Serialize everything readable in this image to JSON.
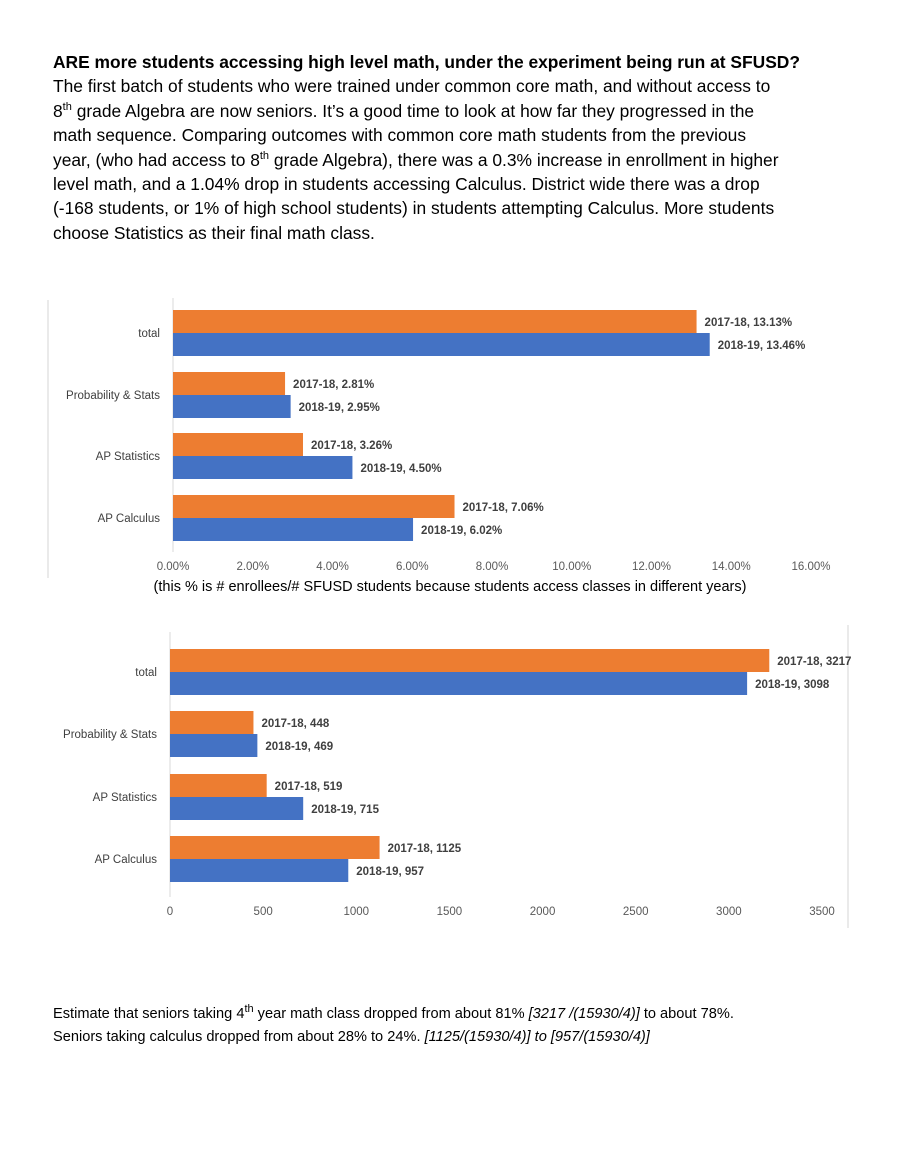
{
  "intro": {
    "heading": "ARE more students accessing high level math, under the experiment being run at SFUSD?",
    "p1": "The first batch of students who were trained under common core math, and without access to",
    "p2_sup_num": "8",
    "p2_sup": "th",
    "p2_rest": " grade Algebra are now seniors. It’s a good time to look at how far they progressed in the",
    "p3": "math sequence. Comparing outcomes with common core math students from the previous",
    "p4_pre": "year, (who had access to 8",
    "p4_sup": "th",
    "p4_rest": " grade Algebra), there was a 0.3% increase in enrollment in higher",
    "p5": "level math, and a 1.04% drop in students accessing Calculus.       District wide there was a drop",
    "p6": "(-168 students, or 1% of high school students) in students attempting Calculus. More students",
    "p7": "choose Statistics as their final math class."
  },
  "caption": "(this % is # enrollees/# SFUSD students because students access classes in different years)",
  "footer": {
    "l1_pre": "Estimate that seniors taking 4",
    "l1_sup": "th",
    "l1_mid": " year math class dropped from about 81% ",
    "l1_ital": "[3217 /(15930/4)]",
    "l1_post": " to about 78%.",
    "l2_pre": "Seniors taking calculus dropped from about 28% to 24%. ",
    "l2_ital": "[1125/(15930/4)] to [957/(15930/4)]"
  },
  "colors": {
    "s2017": "#ED7D31",
    "s2018": "#4472C4"
  },
  "chart_data": [
    {
      "type": "bar",
      "orientation": "horizontal",
      "categories": [
        "total",
        "Probability & Stats",
        "AP Statistics",
        "AP Calculus"
      ],
      "series": [
        {
          "name": "2017-18",
          "values": [
            13.13,
            2.81,
            3.26,
            7.06
          ],
          "labels": [
            "2017-18, 13.13%",
            "2017-18, 2.81%",
            "2017-18, 3.26%",
            "2017-18, 7.06%"
          ]
        },
        {
          "name": "2018-19",
          "values": [
            13.46,
            2.95,
            4.5,
            6.02
          ],
          "labels": [
            "2018-19, 13.46%",
            "2018-19, 2.95%",
            "2018-19, 4.50%",
            "2018-19, 6.02%"
          ]
        }
      ],
      "xlim": [
        0,
        16
      ],
      "ticks": [
        "0.00%",
        "2.00%",
        "4.00%",
        "6.00%",
        "8.00%",
        "10.00%",
        "12.00%",
        "14.00%",
        "16.00%"
      ],
      "grid": false,
      "legend": "none"
    },
    {
      "type": "bar",
      "orientation": "horizontal",
      "categories": [
        "total",
        "Probability & Stats",
        "AP Statistics",
        "AP Calculus"
      ],
      "series": [
        {
          "name": "2017-18",
          "values": [
            3217,
            448,
            519,
            1125
          ],
          "labels": [
            "2017-18, 3217",
            "2017-18, 448",
            "2017-18, 519",
            "2017-18, 1125"
          ]
        },
        {
          "name": "2018-19",
          "values": [
            3098,
            469,
            715,
            957
          ],
          "labels": [
            "2018-19, 3098",
            "2018-19, 469",
            "2018-19, 715",
            "2018-19, 957"
          ]
        }
      ],
      "xlim": [
        0,
        3500
      ],
      "ticks": [
        "0",
        "500",
        "1000",
        "1500",
        "2000",
        "2500",
        "3000",
        "3500"
      ],
      "grid": false,
      "legend": "none"
    }
  ]
}
